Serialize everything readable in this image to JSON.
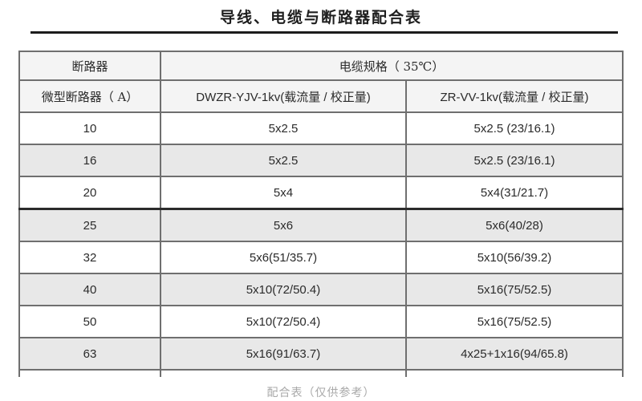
{
  "page": {
    "title": "导线、电缆与断路器配合表",
    "caption": "配合表（仅供参考）"
  },
  "table": {
    "header_row_1": {
      "breaker": "断路器",
      "cable_spec": "电缆规格（ 35℃）"
    },
    "header_row_2": [
      "微型断路器（ A）",
      "DWZR-YJV-1kv(载流量 / 校正量)",
      "ZR-VV-1kv(载流量 / 校正量)"
    ],
    "rows": [
      [
        "10",
        "5x2.5",
        "5x2.5 (23/16.1)"
      ],
      [
        "16",
        "5x2.5",
        "5x2.5 (23/16.1)"
      ],
      [
        "20",
        "5x4",
        "5x4(31/21.7)"
      ],
      [
        "25",
        "5x6",
        "5x6(40/28)"
      ],
      [
        "32",
        "5x6(51/35.7)",
        "5x10(56/39.2)"
      ],
      [
        "40",
        "5x10(72/50.4)",
        "5x16(75/52.5)"
      ],
      [
        "50",
        "5x10(72/50.4)",
        "5x16(75/52.5)"
      ],
      [
        "63",
        "5x16(91/63.7)",
        "4x25+1x16(94/65.8)"
      ]
    ]
  },
  "colors": {
    "shaded_row": "#e8e8e8",
    "header_bg": "#f4f4f4",
    "border_inner": "#6f6f6f",
    "border_outer": "#474747",
    "caption_text": "#a9a9a9",
    "title_text": "#1f1f1f"
  }
}
